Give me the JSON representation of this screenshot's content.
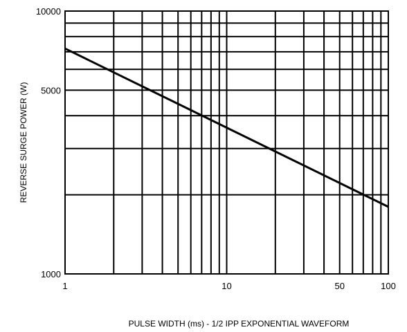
{
  "chart_data": {
    "type": "line",
    "title": "",
    "xlabel": "PULSE WIDTH (ms) - 1/2 IPP EXPONENTIAL WAVEFORM",
    "ylabel": "REVERSE SURGE POWER (W)",
    "x_scale": "log",
    "y_scale": "log",
    "xlim": [
      1,
      100
    ],
    "ylim": [
      1000,
      10000
    ],
    "x_ticks": [
      1,
      10,
      50,
      100
    ],
    "x_tick_labels": [
      "1",
      "10",
      "50",
      "100"
    ],
    "y_ticks": [
      1000,
      5000,
      10000
    ],
    "y_tick_labels": [
      "1000",
      "5000",
      "10000"
    ],
    "grid": true,
    "legend": "none",
    "series": [
      {
        "x": [
          1,
          100
        ],
        "y": [
          7200,
          1800
        ],
        "color": "#000000"
      }
    ]
  }
}
